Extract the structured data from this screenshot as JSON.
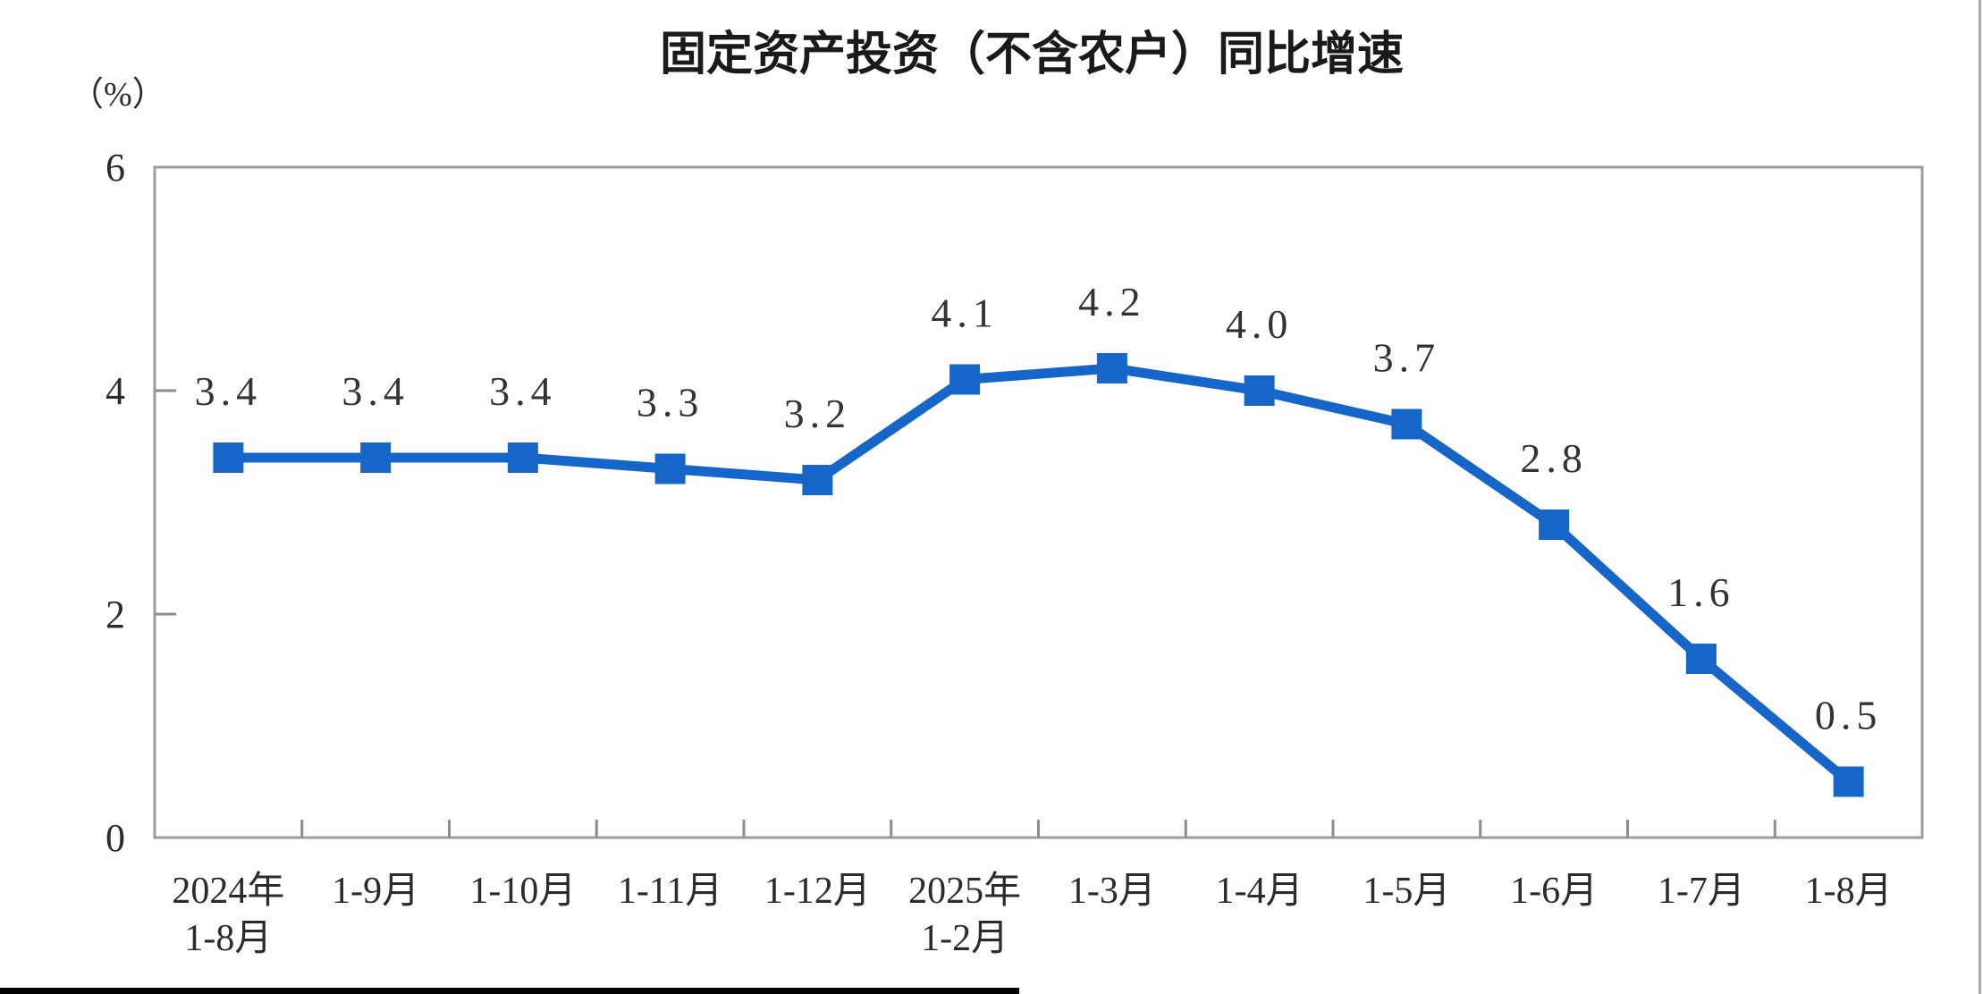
{
  "chart_data": {
    "type": "line",
    "title": "固定资产投资（不含农户）同比增速",
    "unit_label": "（%）",
    "categories": [
      [
        "2024年",
        "1-8月"
      ],
      [
        "1-9月"
      ],
      [
        "1-10月"
      ],
      [
        "1-11月"
      ],
      [
        "1-12月"
      ],
      [
        "2025年",
        "1-2月"
      ],
      [
        "1-3月"
      ],
      [
        "1-4月"
      ],
      [
        "1-5月"
      ],
      [
        "1-6月"
      ],
      [
        "1-7月"
      ],
      [
        "1-8月"
      ]
    ],
    "series": [
      {
        "name": "固定资产投资（不含农户）同比增速",
        "values": [
          3.4,
          3.4,
          3.4,
          3.3,
          3.2,
          4.1,
          4.2,
          4.0,
          3.7,
          2.8,
          1.6,
          0.5
        ]
      }
    ],
    "data_labels": [
      "3.4",
      "3.4",
      "3.4",
      "3.3",
      "3.2",
      "4.1",
      "4.2",
      "4.0",
      "3.7",
      "2.8",
      "1.6",
      "0.5"
    ],
    "xlabel": "",
    "ylabel": "（%）",
    "ylim": [
      0,
      6
    ],
    "yticks": [
      0,
      2,
      4,
      6
    ],
    "grid": false,
    "legend": "none",
    "marker": "filled-square",
    "colors": {
      "line": "#1566C8",
      "marker": "#1566C8",
      "axis_box": "#9c9c9c",
      "tick": "#8c8c8c",
      "data_label_text": "#333333",
      "tick_label_text": "#2b2b2b",
      "title_text": "#1a1a1a"
    }
  }
}
